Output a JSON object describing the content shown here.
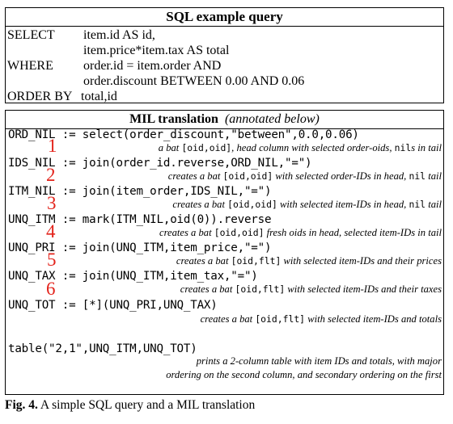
{
  "sql": {
    "title": "SQL example query",
    "lines": [
      {
        "keyword": "SELECT",
        "text": "item.id AS id,"
      },
      {
        "keyword": "",
        "text": "item.price*item.tax AS total"
      },
      {
        "keyword": "WHERE",
        "text": "order.id = item.order AND"
      },
      {
        "keyword": "",
        "text": "order.discount BETWEEN 0.00 AND 0.06"
      }
    ],
    "orderby_keyword": "ORDER BY",
    "orderby_text": "total,id"
  },
  "mil": {
    "title_bold": "MIL translation",
    "title_italic": "(annotated below)",
    "steps": [
      {
        "code": "ORD_NIL := select(order_discount,\"between\",0.0,0.06)",
        "number": "1",
        "note": [
          {
            "t": "a bat "
          },
          {
            "m": "[oid,oid]"
          },
          {
            "t": ", head column with selected order-oids, "
          },
          {
            "m": "nil"
          },
          {
            "t": "s in tail"
          }
        ]
      },
      {
        "code": "IDS_NIL := join(order_id.reverse,ORD_NIL,\"=\")",
        "number": "2",
        "note": [
          {
            "t": "creates a bat "
          },
          {
            "m": "[oid,oid]"
          },
          {
            "t": " with selected order-IDs in head, "
          },
          {
            "m": "nil"
          },
          {
            "t": " tail"
          }
        ]
      },
      {
        "code": "ITM_NIL := join(item_order,IDS_NIL,\"=\")",
        "number": "3",
        "note": [
          {
            "t": "creates a bat "
          },
          {
            "m": "[oid,oid]"
          },
          {
            "t": " with selected item-IDs in head, "
          },
          {
            "m": "nil"
          },
          {
            "t": " tail"
          }
        ]
      },
      {
        "code": "UNQ_ITM := mark(ITM_NIL,oid(0)).reverse",
        "number": "4",
        "note": [
          {
            "t": "creates a bat "
          },
          {
            "m": "[oid,oid]"
          },
          {
            "t": " fresh oids in head, selected item-IDs in tail"
          }
        ]
      },
      {
        "code": "UNQ_PRI := join(UNQ_ITM,item_price,\"=\")",
        "number": "5",
        "note": [
          {
            "t": "creates a bat "
          },
          {
            "m": "[oid,flt]"
          },
          {
            "t": " with selected item-IDs and their prices"
          }
        ]
      },
      {
        "code": "UNQ_TAX := join(UNQ_ITM,item_tax,\"=\")",
        "number": "6",
        "note": [
          {
            "t": "creates a bat "
          },
          {
            "m": "[oid,flt]"
          },
          {
            "t": " with selected item-IDs and their taxes"
          }
        ]
      },
      {
        "code": "UNQ_TOT := [*](UNQ_PRI,UNQ_TAX)",
        "number": "",
        "note": [
          {
            "t": "creates a bat "
          },
          {
            "m": "[oid,flt]"
          },
          {
            "t": " with selected item-IDs and totals"
          }
        ]
      },
      {
        "code": "table(\"2,1\",UNQ_ITM,UNQ_TOT)",
        "number": "",
        "note": [
          {
            "t": "prints a 2-column table with item IDs and totals, with major"
          }
        ],
        "note2": [
          {
            "t": "ordering on the second column, and secondary ordering on the first"
          }
        ]
      }
    ]
  },
  "caption": {
    "label": "Fig. 4.",
    "text": " A simple SQL query and a MIL translation"
  },
  "colors": {
    "step_number": "#e3231b"
  }
}
